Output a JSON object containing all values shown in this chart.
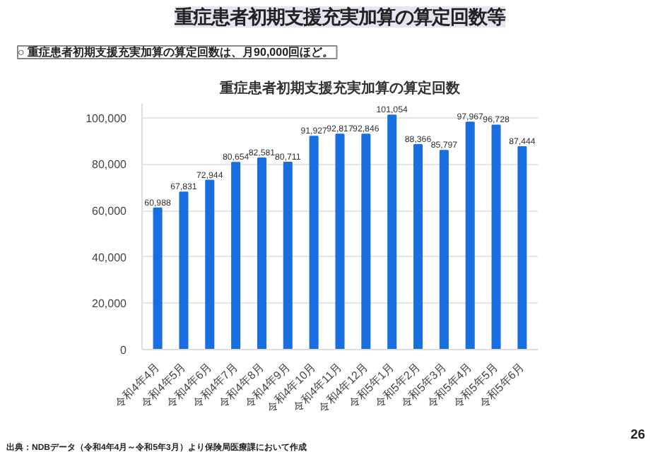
{
  "chart_data": {
    "type": "bar",
    "title": "重症患者初期支援充実加算の算定回数",
    "categories": [
      "令和4年4月",
      "令和4年5月",
      "令和4年6月",
      "令和4年7月",
      "令和4年8月",
      "令和4年9月",
      "令和4年10月",
      "令和4年11月",
      "令和4年12月",
      "令和5年1月",
      "令和5年2月",
      "令和5年3月",
      "令和5年4月",
      "令和5年5月",
      "令和5年6月"
    ],
    "values": [
      60988,
      67831,
      72944,
      80654,
      82581,
      80711,
      91927,
      92817,
      92846,
      101054,
      88366,
      85797,
      97967,
      96728,
      87444
    ],
    "color": "#1a6fe0",
    "ylim": [
      0,
      106000
    ],
    "yticks": [
      {
        "value": 0,
        "label": "0"
      },
      {
        "value": 20000,
        "label": "20,000"
      },
      {
        "value": 40000,
        "label": "40,000"
      },
      {
        "value": 60000,
        "label": "60,000"
      },
      {
        "value": 80000,
        "label": "80,000"
      },
      {
        "value": 100000,
        "label": "100,000"
      }
    ],
    "grid": "y",
    "data_labels": true,
    "value_labels": [
      "60,988",
      "67,831",
      "72,944",
      "80,654",
      "82,581",
      "80,711",
      "91,927",
      "92,817",
      "92,846",
      "101,054",
      "88,366",
      "85,797",
      "97,967",
      "96,728",
      "87,444"
    ],
    "annotations": [
      "重症患者初期支援充実加算の算定回数等",
      "○  重症患者初期支援充実加算の算定回数は、月90,000回ほど。",
      "出典：NDBデータ（令和4年4月～令和5年3月）より保険局医療課において作成",
      "26"
    ]
  }
}
